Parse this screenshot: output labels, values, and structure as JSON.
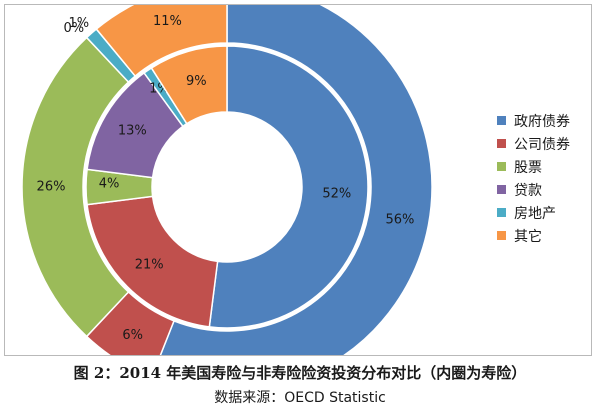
{
  "chart_data": {
    "type": "pie",
    "subtype": "nested-donut",
    "categories": [
      "政府债券",
      "公司债券",
      "股票",
      "贷款",
      "房地产",
      "其它"
    ],
    "colors": [
      "#4f81bd",
      "#c0504d",
      "#9bbb59",
      "#8064a2",
      "#4bacc6",
      "#f79646"
    ],
    "series": [
      {
        "ring": "inner",
        "values": [
          52,
          21,
          4,
          13,
          1,
          9
        ],
        "labels": [
          "52%",
          "21%",
          "4%",
          "13%",
          "1%",
          "9%"
        ]
      },
      {
        "ring": "outer",
        "values": [
          56,
          6,
          26,
          0,
          1,
          11
        ],
        "labels": [
          "56%",
          "6%",
          "26%",
          "0%",
          "1%",
          "11%"
        ]
      }
    ],
    "legend_position": "right",
    "grid": false
  },
  "caption": {
    "title": "图 2：2014 年美国寿险与非寿险险资投资分布对比（内圈为寿险）",
    "source": "数据来源：OECD Statistic"
  }
}
